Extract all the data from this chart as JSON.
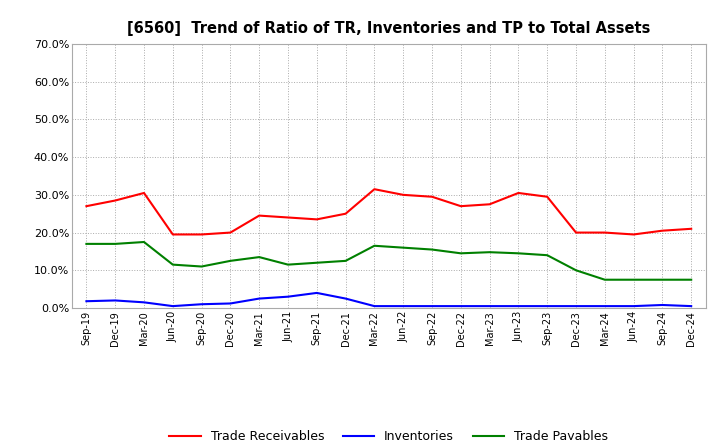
{
  "title": "[6560]  Trend of Ratio of TR, Inventories and TP to Total Assets",
  "x_labels": [
    "Sep-19",
    "Dec-19",
    "Mar-20",
    "Jun-20",
    "Sep-20",
    "Dec-20",
    "Mar-21",
    "Jun-21",
    "Sep-21",
    "Dec-21",
    "Mar-22",
    "Jun-22",
    "Sep-22",
    "Dec-22",
    "Mar-23",
    "Jun-23",
    "Sep-23",
    "Dec-23",
    "Mar-24",
    "Jun-24",
    "Sep-24",
    "Dec-24"
  ],
  "trade_receivables": [
    0.27,
    0.285,
    0.305,
    0.195,
    0.195,
    0.2,
    0.245,
    0.24,
    0.235,
    0.25,
    0.315,
    0.3,
    0.295,
    0.27,
    0.275,
    0.305,
    0.295,
    0.2,
    0.2,
    0.195,
    0.205,
    0.21
  ],
  "inventories": [
    0.018,
    0.02,
    0.015,
    0.005,
    0.01,
    0.012,
    0.025,
    0.03,
    0.04,
    0.025,
    0.005,
    0.005,
    0.005,
    0.005,
    0.005,
    0.005,
    0.005,
    0.005,
    0.005,
    0.005,
    0.008,
    0.005
  ],
  "trade_payables": [
    0.17,
    0.17,
    0.175,
    0.115,
    0.11,
    0.125,
    0.135,
    0.115,
    0.12,
    0.125,
    0.165,
    0.16,
    0.155,
    0.145,
    0.148,
    0.145,
    0.14,
    0.1,
    0.075,
    0.075,
    0.075,
    0.075
  ],
  "tr_color": "#FF0000",
  "inv_color": "#0000FF",
  "tp_color": "#008000",
  "ylim": [
    0.0,
    0.7
  ],
  "yticks": [
    0.0,
    0.1,
    0.2,
    0.3,
    0.4,
    0.5,
    0.6,
    0.7
  ],
  "legend_labels": [
    "Trade Receivables",
    "Inventories",
    "Trade Payables"
  ],
  "bg_color": "#FFFFFF",
  "grid_color": "#AAAAAA"
}
